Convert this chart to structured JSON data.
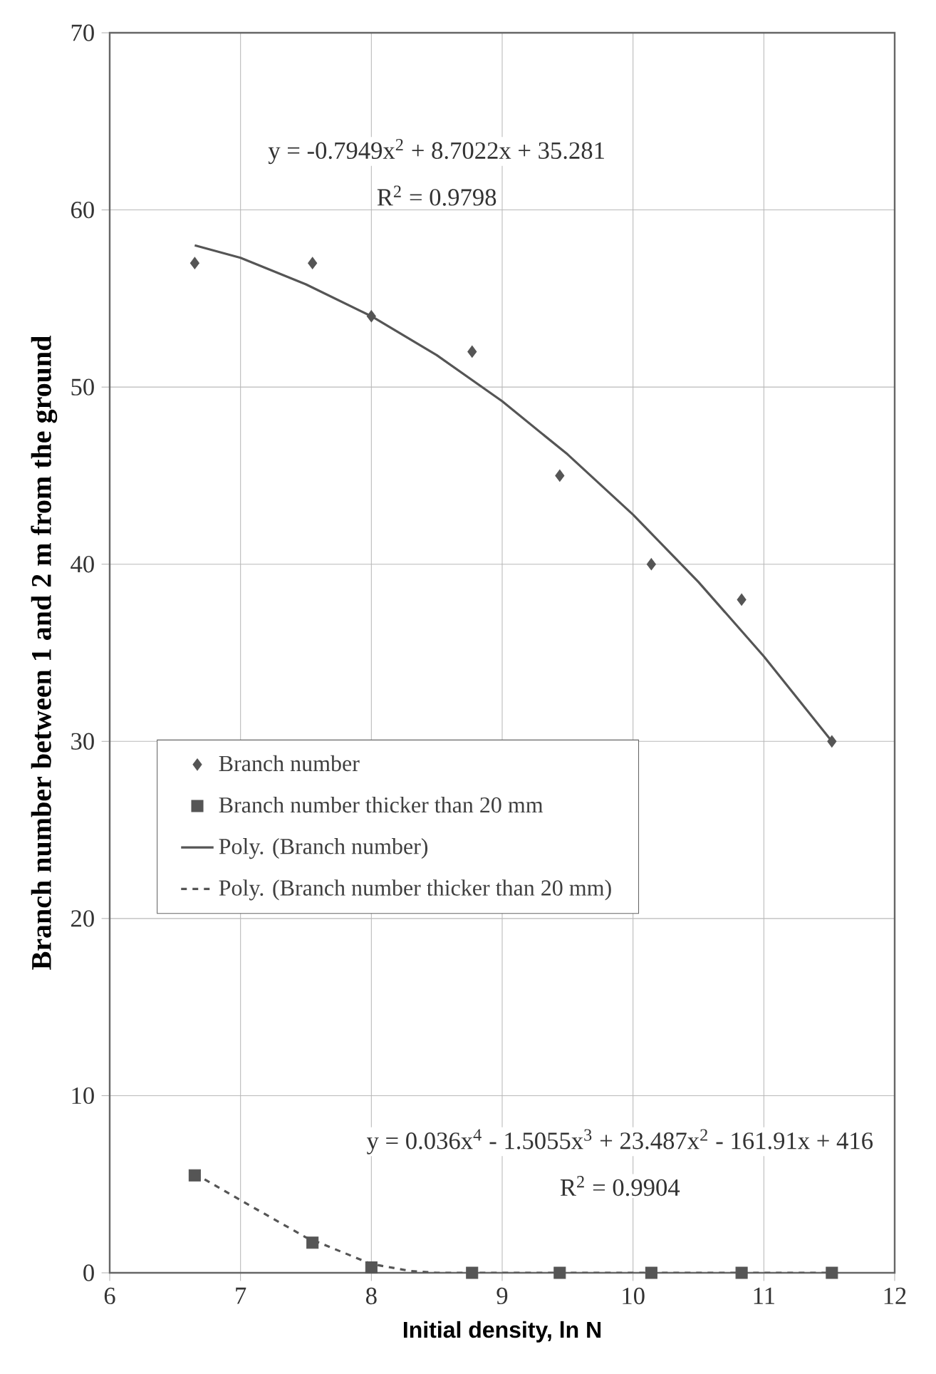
{
  "chart_data": {
    "type": "scatter",
    "xlabel": "Initial density, ln N",
    "ylabel": "Branch number between 1 and 2 m from the ground",
    "xlim": [
      6,
      12
    ],
    "ylim": [
      0,
      70
    ],
    "xticks": [
      6,
      7,
      8,
      9,
      10,
      11,
      12
    ],
    "yticks": [
      0,
      10,
      20,
      30,
      40,
      50,
      60,
      70
    ],
    "grid": true,
    "legend": "left",
    "series": [
      {
        "name": "Branch number",
        "type": "scatter",
        "marker": "diamond",
        "color": "#555555",
        "x": [
          6.65,
          7.55,
          8.0,
          8.77,
          9.44,
          10.14,
          10.83,
          11.52
        ],
        "values": [
          57,
          57,
          54,
          52,
          45,
          40,
          38,
          30
        ]
      },
      {
        "name": "Branch number thicker than 20 mm",
        "type": "scatter",
        "marker": "square",
        "color": "#555555",
        "x": [
          6.65,
          7.55,
          8.0,
          8.77,
          9.44,
          10.14,
          10.83,
          11.52
        ],
        "values": [
          5.5,
          1.7,
          0.3,
          0,
          0,
          0,
          0,
          0
        ]
      },
      {
        "name": "Poly. (Branch number)",
        "type": "line",
        "marker": "none",
        "line_style": "solid",
        "color": "#555555",
        "x": [
          6.65,
          7,
          7.5,
          8,
          8.5,
          9,
          9.5,
          10,
          10.5,
          11,
          11.52
        ],
        "values": [
          58,
          57.3,
          55.8,
          54,
          51.8,
          49.2,
          46.2,
          42.8,
          39,
          34.8,
          30
        ]
      },
      {
        "name": "Poly. (Branch number thicker than 20 mm)",
        "type": "line",
        "marker": "none",
        "line_style": "dashed",
        "color": "#555555",
        "x": [
          6.65,
          7,
          7.5,
          8,
          8.3,
          8.5,
          9,
          10,
          11,
          11.52
        ],
        "values": [
          5.6,
          4.1,
          2,
          0.5,
          0.1,
          0,
          0,
          0,
          0,
          0
        ]
      }
    ],
    "annotations": [
      "y = -0.7949x$^{2}$ + 8.7022x + 35.281",
      "R$^{2}$ = 0.9798",
      "y = 0.036x$^{4}$ - 1.5055x$^{3}$ + 23.487x$^{2}$ - 161.91x + 416",
      "R$^{2}$ = 0.9904"
    ]
  }
}
